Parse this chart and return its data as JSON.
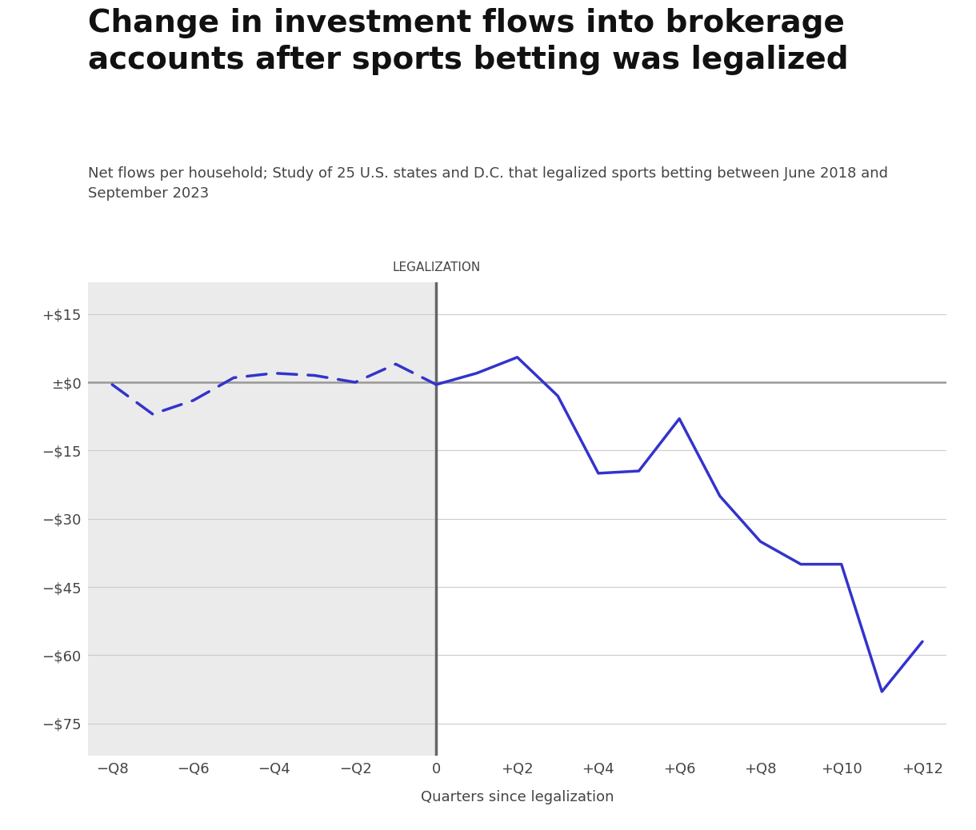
{
  "title_line1": "Change in investment flows into brokerage",
  "title_line2": "accounts after sports betting was legalized",
  "subtitle": "Net flows per household; Study of 25 U.S. states and D.C. that legalized sports betting between June 2018 and\nSeptember 2023",
  "xlabel": "Quarters since legalization",
  "legalization_label": "LEGALIZATION",
  "pre_x": [
    -8,
    -7,
    -6,
    -5,
    -4,
    -3,
    -2,
    -1,
    0
  ],
  "pre_y": [
    -0.5,
    -7.0,
    -4.0,
    1.0,
    2.0,
    1.5,
    0.0,
    4.0,
    -0.5
  ],
  "post_x": [
    0,
    1,
    2,
    3,
    4,
    5,
    6,
    7,
    8,
    9,
    10,
    11,
    12
  ],
  "post_y": [
    -0.5,
    2.0,
    5.5,
    -3.0,
    -20.0,
    -19.5,
    -8.0,
    -25.0,
    -35.0,
    -40.0,
    -40.0,
    -68.0,
    -57.0
  ],
  "line_color": "#3333CC",
  "zero_line_color": "#999999",
  "vline_color": "#666666",
  "bg_pre_color": "#EBEBEB",
  "yticks": [
    15,
    0,
    -15,
    -30,
    -45,
    -60,
    -75
  ],
  "ytick_labels": [
    "+$15",
    "±$0",
    "−$15",
    "−$30",
    "−$45",
    "−$60",
    "−$75"
  ],
  "xticks": [
    -8,
    -6,
    -4,
    -2,
    0,
    2,
    4,
    6,
    8,
    10,
    12
  ],
  "xtick_labels": [
    "−Q8",
    "−Q6",
    "−Q4",
    "−Q2",
    "0",
    "+Q2",
    "+Q4",
    "+Q6",
    "+Q8",
    "+Q10",
    "+Q12"
  ],
  "ylim": [
    -82,
    22
  ],
  "xlim": [
    -8.6,
    12.6
  ],
  "title_fontsize": 28,
  "subtitle_fontsize": 13,
  "axis_fontsize": 13,
  "tick_fontsize": 13,
  "legalization_fontsize": 11
}
